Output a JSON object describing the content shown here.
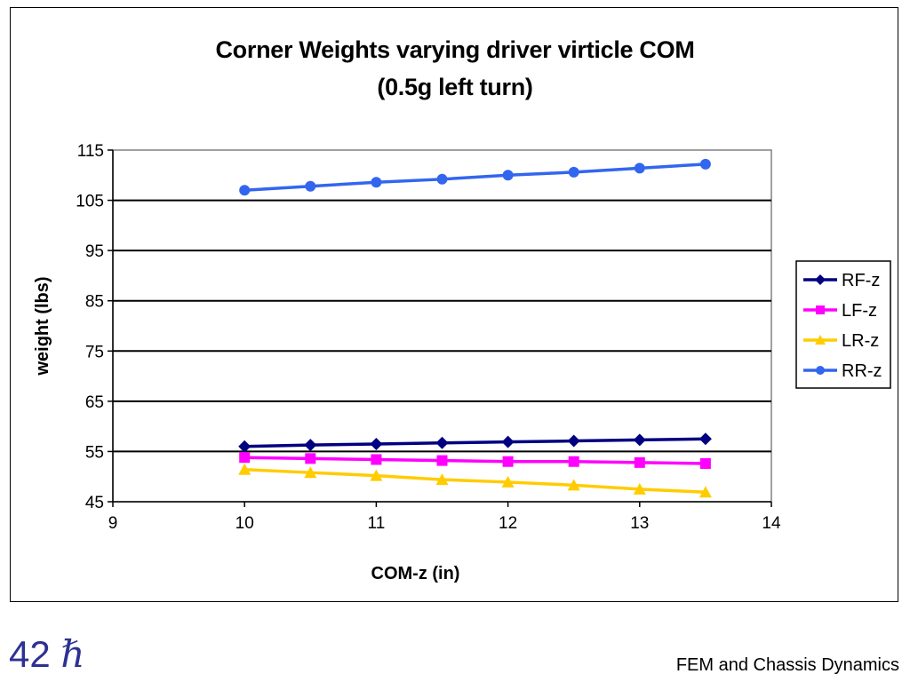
{
  "chart_data": {
    "type": "line",
    "title": "Corner Weights varying driver virticle COM",
    "subtitle": "(0.5g left turn)",
    "xlabel": "COM-z (in)",
    "ylabel": "weight (lbs)",
    "xlim": [
      9,
      14
    ],
    "ylim": [
      45,
      115
    ],
    "xticks": [
      "9",
      "10",
      "11",
      "12",
      "13",
      "14"
    ],
    "yticks": [
      "45",
      "55",
      "65",
      "75",
      "85",
      "95",
      "105",
      "115"
    ],
    "x": [
      10,
      10.5,
      11,
      11.5,
      12,
      12.5,
      13,
      13.5
    ],
    "grid": "horizontal major",
    "legend": "right",
    "series": [
      {
        "name": "RF-z",
        "color": "#000080",
        "marker": "diamond",
        "values": [
          56.0,
          56.3,
          56.5,
          56.7,
          56.9,
          57.1,
          57.3,
          57.5
        ]
      },
      {
        "name": "LF-z",
        "color": "#ff00ff",
        "marker": "square",
        "values": [
          53.8,
          53.6,
          53.4,
          53.2,
          53.0,
          53.0,
          52.8,
          52.6
        ]
      },
      {
        "name": "LR-z",
        "color": "#ffcc00",
        "marker": "triangle",
        "values": [
          51.4,
          50.8,
          50.2,
          49.4,
          48.9,
          48.3,
          47.5,
          46.9
        ]
      },
      {
        "name": "RR-z",
        "color": "#3366ee",
        "marker": "circle",
        "values": [
          107.0,
          107.8,
          108.6,
          109.2,
          110.0,
          110.6,
          111.4,
          112.2
        ]
      }
    ]
  },
  "footer": {
    "slide_number": "42",
    "hbar": "ℏ",
    "text": "FEM and Chassis Dynamics"
  }
}
